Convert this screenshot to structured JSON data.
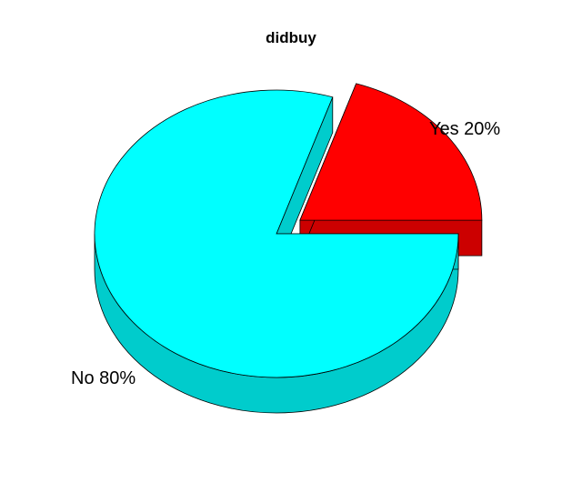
{
  "chart_data": {
    "type": "pie",
    "style": "3d-exploded",
    "title": "didbuy",
    "slices": [
      {
        "label": "Yes 20%",
        "name": "Yes",
        "value": 20,
        "color": "#ff0000",
        "side_color": "#cc0000",
        "exploded": true
      },
      {
        "label": "No 80%",
        "name": "No",
        "value": 80,
        "color": "#00ffff",
        "side_color": "#00cccc",
        "exploded": false
      }
    ]
  }
}
